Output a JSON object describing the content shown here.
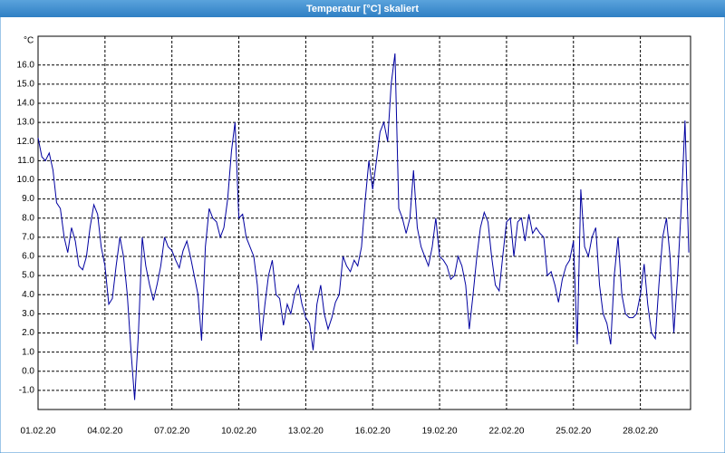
{
  "chart_data": {
    "type": "line",
    "title": "Temperatur [°C] skaliert",
    "y_label": "°C",
    "color": "#0000a0",
    "grid": true,
    "xlim": [
      0,
      29.25
    ],
    "ylim": [
      -2,
      17.5
    ],
    "xticks": [
      {
        "value": 0,
        "label": "01.02.20"
      },
      {
        "value": 3,
        "label": "04.02.20"
      },
      {
        "value": 6,
        "label": "07.02.20"
      },
      {
        "value": 9,
        "label": "10.02.20"
      },
      {
        "value": 12,
        "label": "13.02.20"
      },
      {
        "value": 15,
        "label": "16.02.20"
      },
      {
        "value": 18,
        "label": "19.02.20"
      },
      {
        "value": 21,
        "label": "22.02.20"
      },
      {
        "value": 24,
        "label": "25.02.20"
      },
      {
        "value": 27,
        "label": "28.02.20"
      }
    ],
    "yticks": [
      {
        "value": -1,
        "label": "-1.0"
      },
      {
        "value": 0,
        "label": "0.0"
      },
      {
        "value": 1,
        "label": "1.0"
      },
      {
        "value": 2,
        "label": "2.0"
      },
      {
        "value": 3,
        "label": "3.0"
      },
      {
        "value": 4,
        "label": "4.0"
      },
      {
        "value": 5,
        "label": "5.0"
      },
      {
        "value": 6,
        "label": "6.0"
      },
      {
        "value": 7,
        "label": "7.0"
      },
      {
        "value": 8,
        "label": "8.0"
      },
      {
        "value": 9,
        "label": "9.0"
      },
      {
        "value": 10,
        "label": "10.0"
      },
      {
        "value": 11,
        "label": "11.0"
      },
      {
        "value": 12,
        "label": "12.0"
      },
      {
        "value": 13,
        "label": "13.0"
      },
      {
        "value": 14,
        "label": "14.0"
      },
      {
        "value": 15,
        "label": "15.0"
      },
      {
        "value": 16,
        "label": "16.0"
      }
    ],
    "x": [
      0,
      0.17,
      0.33,
      0.5,
      0.67,
      0.83,
      1,
      1.17,
      1.33,
      1.5,
      1.67,
      1.83,
      2,
      2.17,
      2.33,
      2.5,
      2.67,
      2.83,
      3,
      3.17,
      3.33,
      3.5,
      3.67,
      3.83,
      4,
      4.17,
      4.33,
      4.5,
      4.67,
      4.83,
      5,
      5.17,
      5.33,
      5.5,
      5.67,
      5.83,
      6,
      6.17,
      6.33,
      6.5,
      6.67,
      6.83,
      7,
      7.17,
      7.33,
      7.5,
      7.67,
      7.83,
      8,
      8.17,
      8.33,
      8.5,
      8.67,
      8.83,
      9,
      9.17,
      9.33,
      9.5,
      9.67,
      9.83,
      10,
      10.17,
      10.33,
      10.5,
      10.67,
      10.83,
      11,
      11.17,
      11.33,
      11.5,
      11.67,
      11.83,
      12,
      12.17,
      12.33,
      12.5,
      12.67,
      12.83,
      13,
      13.17,
      13.33,
      13.5,
      13.67,
      13.83,
      14,
      14.17,
      14.33,
      14.5,
      14.67,
      14.83,
      15,
      15.17,
      15.33,
      15.5,
      15.67,
      15.83,
      16,
      16.17,
      16.33,
      16.5,
      16.67,
      16.83,
      17,
      17.17,
      17.33,
      17.5,
      17.67,
      17.83,
      18,
      18.17,
      18.33,
      18.5,
      18.67,
      18.83,
      19,
      19.17,
      19.33,
      19.5,
      19.67,
      19.83,
      20,
      20.17,
      20.33,
      20.5,
      20.67,
      20.83,
      21,
      21.17,
      21.33,
      21.5,
      21.67,
      21.83,
      22,
      22.17,
      22.33,
      22.5,
      22.67,
      22.83,
      23,
      23.17,
      23.33,
      23.5,
      23.67,
      23.83,
      24,
      24.17,
      24.33,
      24.5,
      24.67,
      24.83,
      25,
      25.17,
      25.33,
      25.5,
      25.67,
      25.83,
      26,
      26.17,
      26.33,
      26.5,
      26.67,
      26.83,
      27,
      27.17,
      27.33,
      27.5,
      27.67,
      27.83,
      28,
      28.17,
      28.33,
      28.5,
      28.67,
      28.83,
      29,
      29.17
    ],
    "values": [
      12.2,
      11.2,
      11.0,
      11.4,
      10.5,
      8.8,
      8.5,
      7.0,
      6.2,
      7.5,
      6.8,
      5.5,
      5.3,
      6.0,
      7.5,
      8.7,
      8.2,
      6.5,
      5.5,
      3.5,
      3.8,
      5.5,
      7.0,
      6.0,
      4.0,
      1.0,
      -1.5,
      2.0,
      7.0,
      5.5,
      4.5,
      3.7,
      4.5,
      5.5,
      7.0,
      6.5,
      6.3,
      5.8,
      5.4,
      6.3,
      6.8,
      6.0,
      5.0,
      4.0,
      1.6,
      6.5,
      8.5,
      8.0,
      7.8,
      7.0,
      7.5,
      9.0,
      11.5,
      13.0,
      8.0,
      8.2,
      7.0,
      6.5,
      6.0,
      4.5,
      1.6,
      3.5,
      5.0,
      5.8,
      4.0,
      3.8,
      2.4,
      3.5,
      3.0,
      4.0,
      4.5,
      3.5,
      2.8,
      2.5,
      1.1,
      3.5,
      4.5,
      3.0,
      2.2,
      2.8,
      3.6,
      4.0,
      6.0,
      5.5,
      5.2,
      5.8,
      5.5,
      6.5,
      9.0,
      11.0,
      9.5,
      11.0,
      12.5,
      13.0,
      12.0,
      15.0,
      16.6,
      8.5,
      8.0,
      7.2,
      8.0,
      10.5,
      7.5,
      6.5,
      6.0,
      5.5,
      6.5,
      8.0,
      6.0,
      5.8,
      5.5,
      4.8,
      5.0,
      6.0,
      5.5,
      4.5,
      2.2,
      4.0,
      6.0,
      7.5,
      8.3,
      7.8,
      6.0,
      4.5,
      4.2,
      6.0,
      7.8,
      8.0,
      6.0,
      7.8,
      8.0,
      6.8,
      8.2,
      7.2,
      7.5,
      7.2,
      7.0,
      5.0,
      5.2,
      4.5,
      3.6,
      4.8,
      5.5,
      5.8,
      6.8,
      1.4,
      9.5,
      6.5,
      6.0,
      7.0,
      7.5,
      4.5,
      3.0,
      2.5,
      1.4,
      5.0,
      7.0,
      4.0,
      3.0,
      2.8,
      2.8,
      3.0,
      4.0,
      5.6,
      3.5,
      2.0,
      1.7,
      4.5,
      7.0,
      8.0,
      6.0,
      2.0,
      5.0,
      8.5,
      13.1,
      6.2
    ]
  }
}
